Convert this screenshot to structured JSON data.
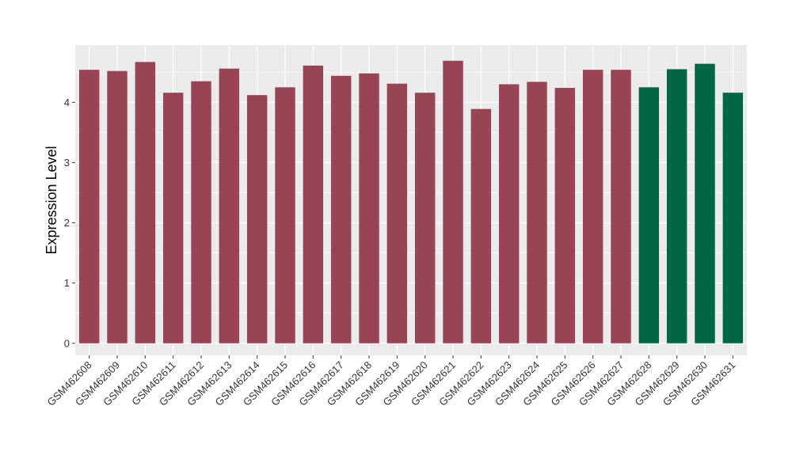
{
  "chart_data": {
    "type": "bar",
    "title": "",
    "xlabel": "",
    "ylabel": "Expression Level",
    "ylim": [
      -0.2,
      4.95
    ],
    "yticks": [
      0,
      1,
      2,
      3,
      4
    ],
    "grid": true,
    "panel_color": "#ebebeb",
    "grid_color": "#ffffff",
    "categories": [
      "GSM462608",
      "GSM462609",
      "GSM462610",
      "GSM462611",
      "GSM462612",
      "GSM462613",
      "GSM462614",
      "GSM462615",
      "GSM462616",
      "GSM462617",
      "GSM462618",
      "GSM462619",
      "GSM462620",
      "GSM462621",
      "GSM462622",
      "GSM462623",
      "GSM462624",
      "GSM462625",
      "GSM462626",
      "GSM462627",
      "GSM462628",
      "GSM462629",
      "GSM462630",
      "GSM462631"
    ],
    "values": [
      4.54,
      4.52,
      4.67,
      4.16,
      4.35,
      4.56,
      4.12,
      4.25,
      4.61,
      4.44,
      4.48,
      4.31,
      4.16,
      4.69,
      3.89,
      4.3,
      4.34,
      4.24,
      4.54,
      4.54,
      4.25,
      4.55,
      4.64,
      4.16
    ],
    "bar_colors": [
      "#994455",
      "#994455",
      "#994455",
      "#994455",
      "#994455",
      "#994455",
      "#994455",
      "#994455",
      "#994455",
      "#994455",
      "#994455",
      "#994455",
      "#994455",
      "#994455",
      "#994455",
      "#994455",
      "#994455",
      "#994455",
      "#994455",
      "#994455",
      "#006644",
      "#006644",
      "#006644",
      "#006644"
    ]
  }
}
